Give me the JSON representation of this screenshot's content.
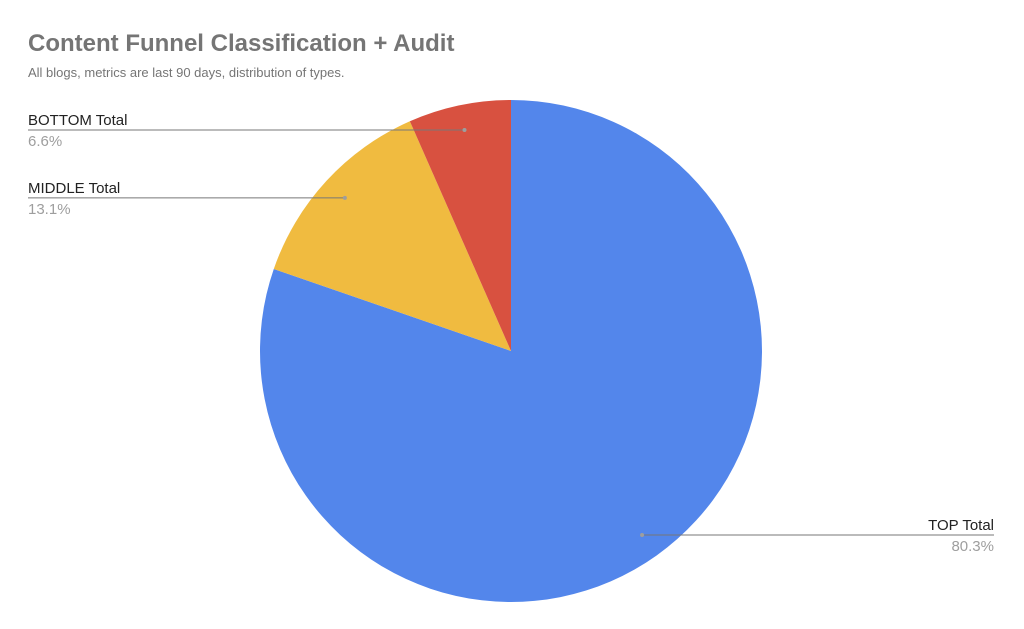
{
  "chart_data": {
    "type": "pie",
    "title": "Content Funnel Classification + Audit",
    "subtitle": "All blogs, metrics are last 90 days, distribution of types.",
    "categories": [
      "TOP Total",
      "MIDDLE Total",
      "BOTTOM Total"
    ],
    "values": [
      80.3,
      13.1,
      6.6
    ],
    "value_labels": [
      "80.3%",
      "13.1%",
      "6.6%"
    ],
    "colors": [
      "#5386eb",
      "#f0bb40",
      "#d85140"
    ]
  }
}
